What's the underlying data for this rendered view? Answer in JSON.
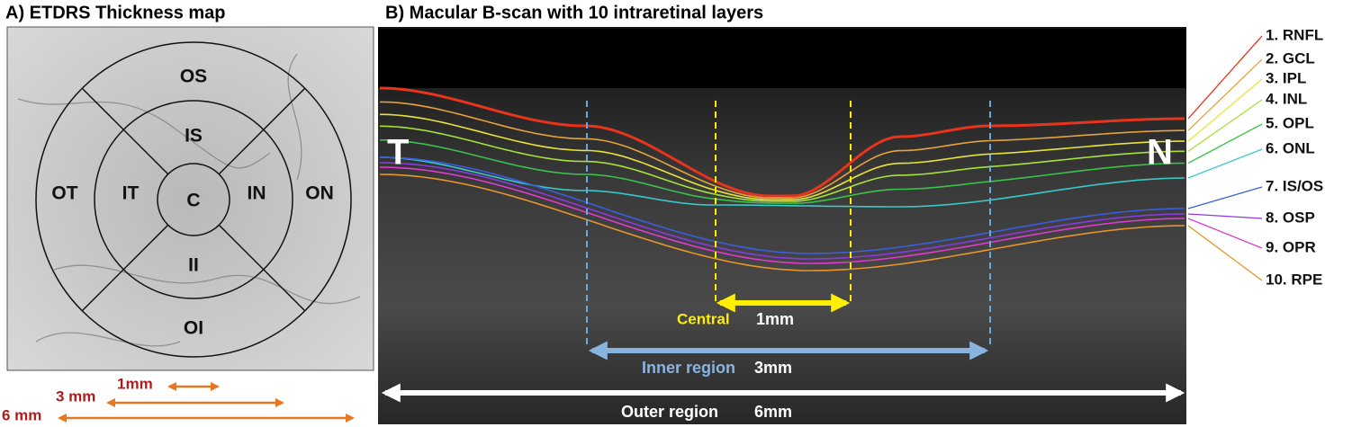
{
  "panel_a": {
    "title": "A) ETDRS Thickness map",
    "sectors": [
      "OS",
      "IS",
      "OT",
      "IT",
      "C",
      "IN",
      "ON",
      "II",
      "OI"
    ],
    "scales": [
      "1mm",
      "3 mm",
      "6 mm"
    ]
  },
  "panel_b": {
    "title": "B) Macular B-scan with 10 intraretinal layers",
    "side_labels": [
      "T",
      "N"
    ],
    "regions": [
      {
        "name": "Central",
        "size": "1mm"
      },
      {
        "name": "Inner region",
        "size": "3mm"
      },
      {
        "name": "Outer region",
        "size": "6mm"
      }
    ],
    "layers": [
      "1. RNFL",
      "2. GCL",
      "3. IPL",
      "4. INL",
      "5. OPL",
      "6. ONL",
      "7. IS/OS",
      "8. OSP",
      "9. OPR",
      "10. RPE"
    ]
  }
}
